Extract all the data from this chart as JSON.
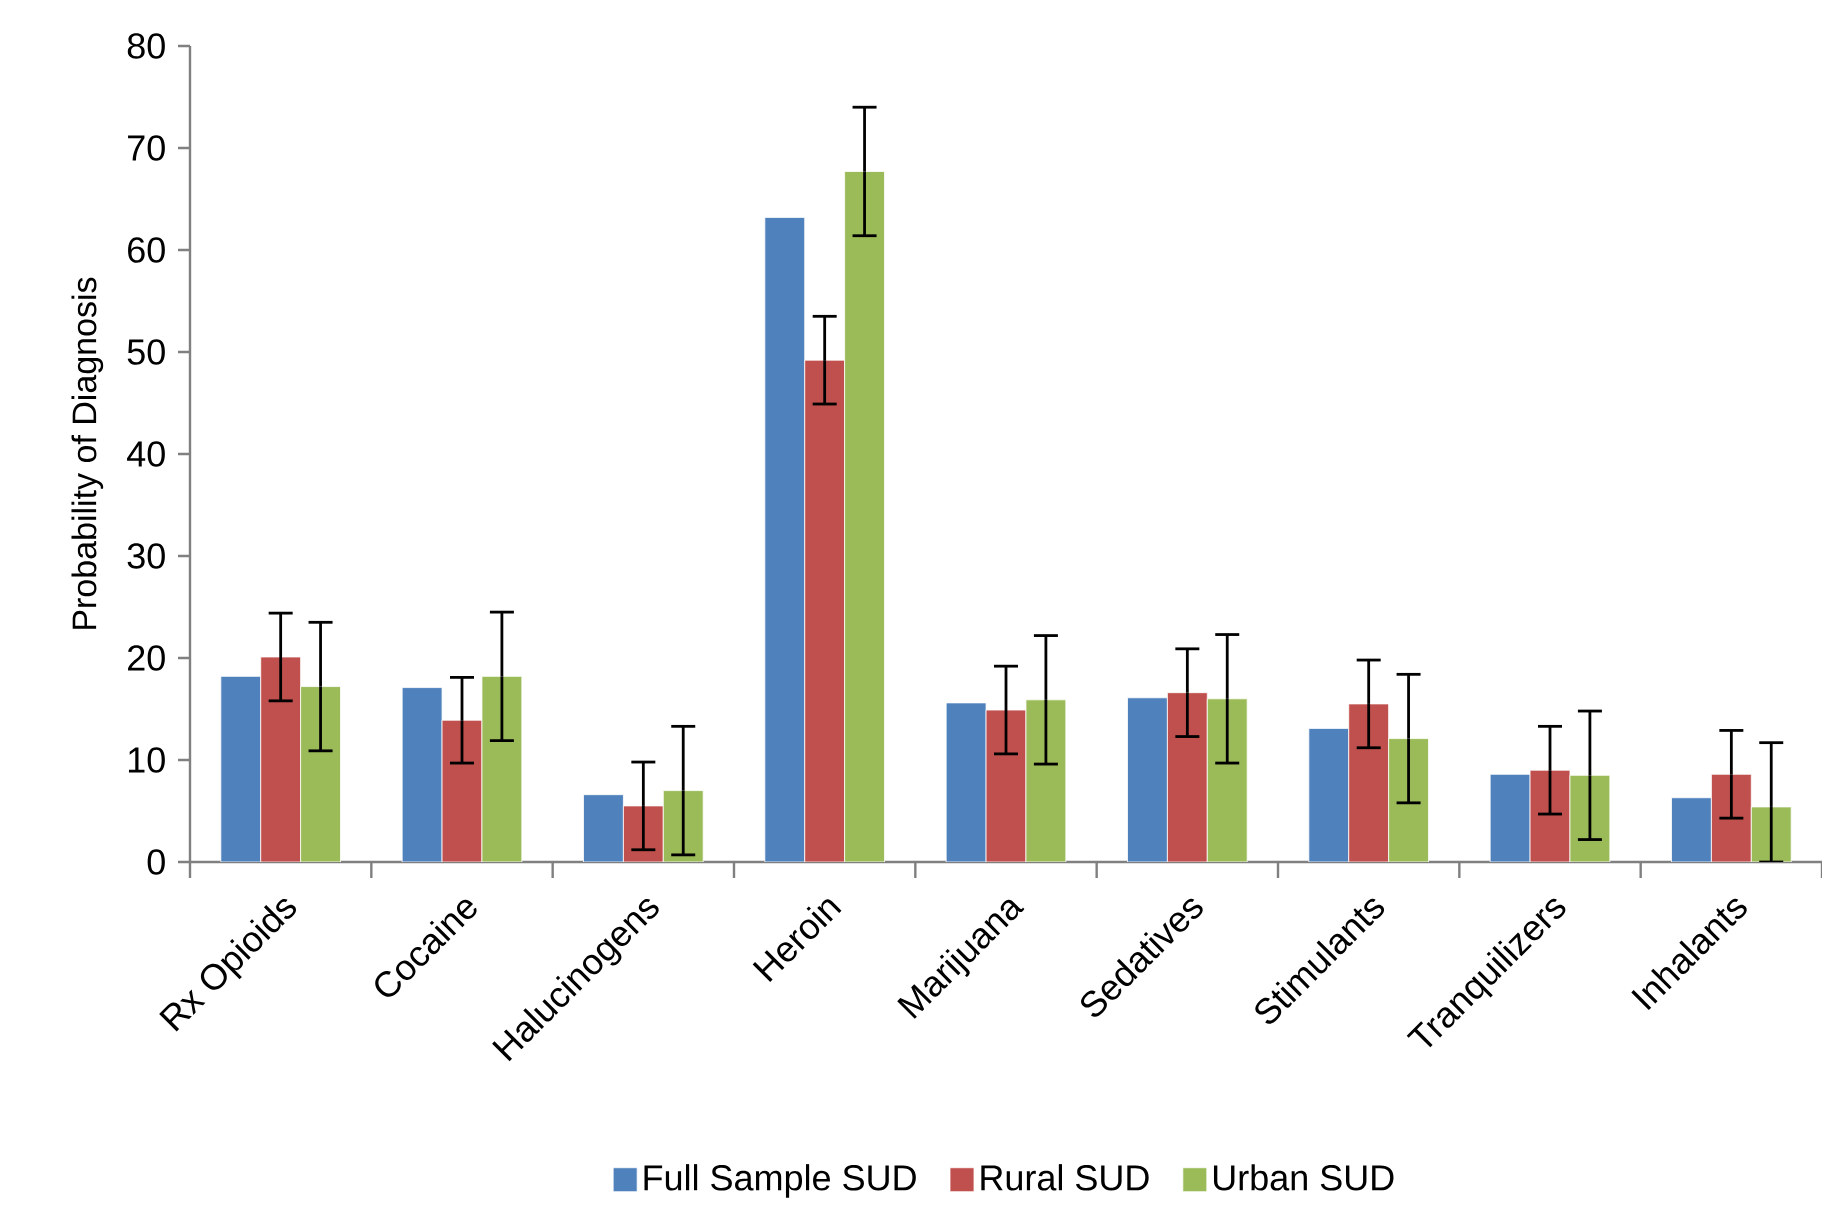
{
  "chart_data": {
    "type": "bar",
    "ylabel": "Probability of Diagnosis",
    "categories": [
      "Rx Opioids",
      "Cocaine",
      "Halucinogens",
      "Heroin",
      "Marijuana",
      "Sedatives",
      "Stimulants",
      "Tranquilizers",
      "Inhalants"
    ],
    "series": [
      {
        "name": "Full Sample SUD",
        "color": "#4f81bd",
        "values": [
          18.2,
          17.1,
          6.6,
          63.2,
          15.6,
          16.1,
          13.1,
          8.6,
          6.3
        ]
      },
      {
        "name": "Rural SUD",
        "color": "#c0504d",
        "values": [
          20.1,
          13.9,
          5.5,
          49.2,
          14.9,
          16.6,
          15.5,
          9.0,
          8.6
        ],
        "errors": [
          4.3,
          4.2,
          4.3,
          4.3,
          4.3,
          4.3,
          4.3,
          4.3,
          4.3
        ]
      },
      {
        "name": "Urban SUD",
        "color": "#9bbb59",
        "values": [
          17.2,
          18.2,
          7.0,
          67.7,
          15.9,
          16.0,
          12.1,
          8.5,
          5.4
        ],
        "errors": [
          6.3,
          6.3,
          6.3,
          6.3,
          6.3,
          6.3,
          6.3,
          6.3,
          [
            0,
            11.7
          ]
        ]
      }
    ],
    "ylim": [
      0,
      80
    ],
    "yticks": [
      0,
      10,
      20,
      30,
      40,
      50,
      60,
      70,
      80
    ],
    "grid": false,
    "legend": "bottom"
  }
}
